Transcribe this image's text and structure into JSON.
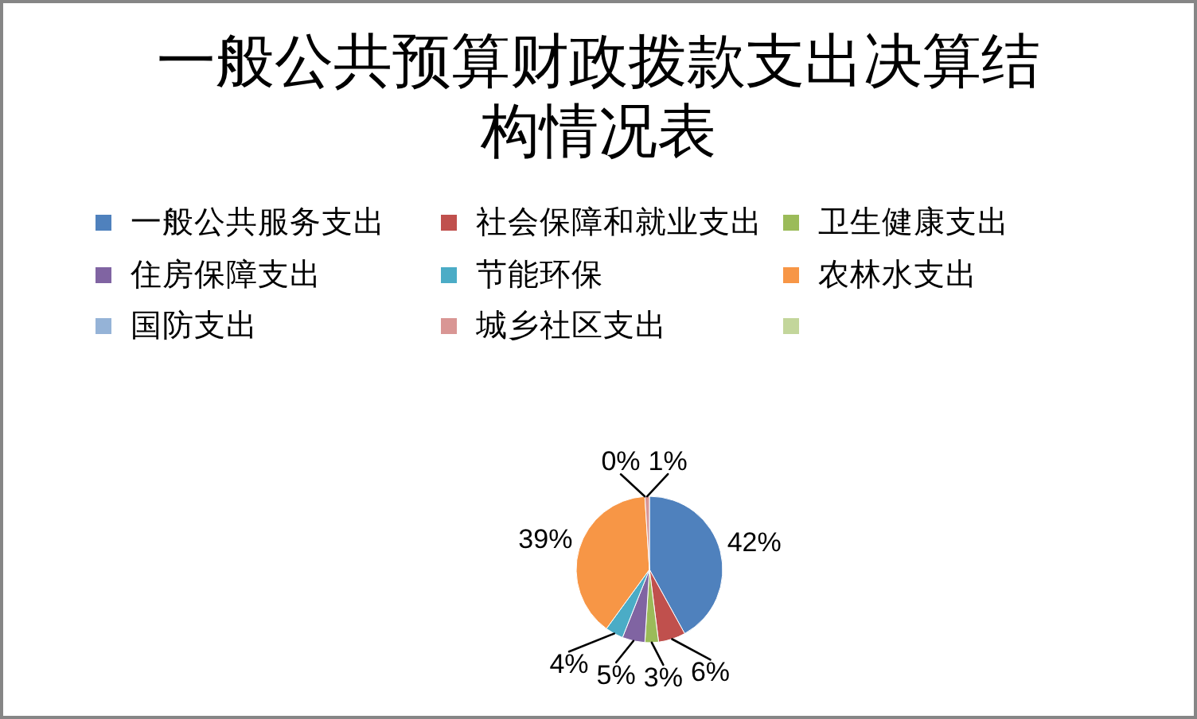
{
  "chart_data": {
    "type": "pie",
    "title": "一般公共预算财政拨款支出决算结构情况表",
    "categories": [
      "一般公共服务支出",
      "社会保障和就业支出",
      "卫生健康支出",
      "住房保障支出",
      "节能环保",
      "农林水支出",
      "国防支出",
      "城乡社区支出",
      null
    ],
    "values": [
      42,
      6,
      3,
      5,
      4,
      39,
      0,
      1,
      null
    ],
    "colors": [
      "#4f81bd",
      "#c0504d",
      "#9bbb59",
      "#8064a2",
      "#4bacc6",
      "#f79646",
      "#95b3d7",
      "#d99694",
      "#c3d69b"
    ],
    "value_labels": [
      "42%",
      "6%",
      "3%",
      "5%",
      "4%",
      "39%",
      "0%",
      "1%",
      null
    ],
    "legend": "top"
  }
}
